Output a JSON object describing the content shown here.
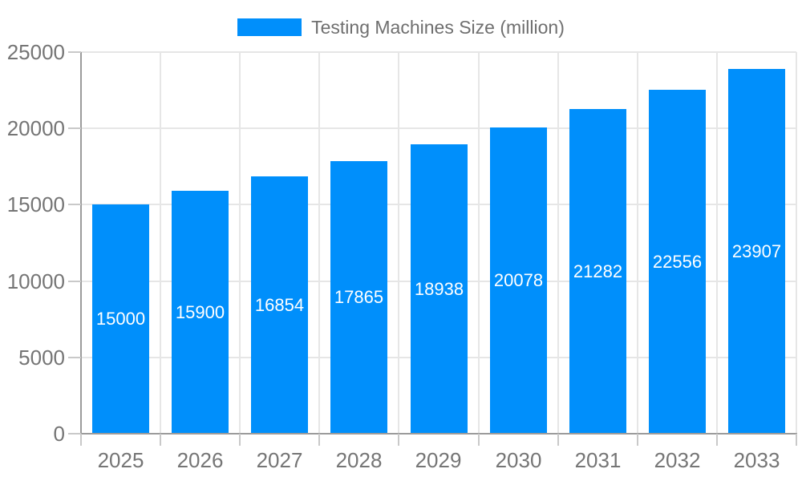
{
  "chart_data": {
    "type": "bar",
    "title": "Testing Machines Size (million)",
    "categories": [
      "2025",
      "2026",
      "2027",
      "2028",
      "2029",
      "2030",
      "2031",
      "2032",
      "2033"
    ],
    "values": [
      15000,
      15900,
      16854,
      17865,
      18938,
      20078,
      21282,
      22556,
      23907
    ],
    "xlabel": "",
    "ylabel": "",
    "ylim": [
      0,
      25000
    ],
    "yticks": [
      0,
      5000,
      10000,
      15000,
      20000,
      25000
    ],
    "legend_position": "top",
    "grid": "on",
    "value_labels": "centered-in-bar"
  },
  "colors": {
    "bar": "#008FFB",
    "grid": "#e6e6e6",
    "axis": "#9b9b9b",
    "tick": "#c9c9c9",
    "axis_label": "#757575",
    "value_label": "#ffffff",
    "legend_label": "#6f6f6f",
    "background": "#ffffff"
  }
}
